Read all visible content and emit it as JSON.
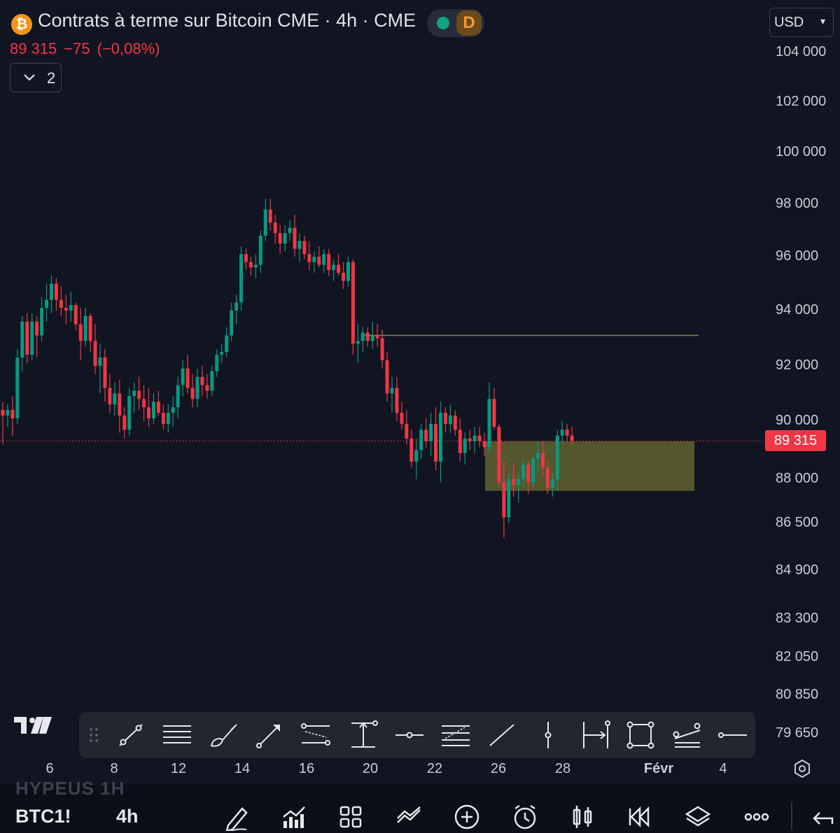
{
  "header": {
    "symbol_icon": "bitcoin-icon",
    "title": "Contrats à terme sur Bitcoin CME · 4h · CME",
    "delay_badge": "D",
    "last_price": "89 315",
    "change": "−75",
    "change_pct": "(−0,08%)",
    "indicator_count": "2",
    "currency": "USD"
  },
  "y_axis": {
    "labels": [
      "104 000",
      "102 000",
      "100 000",
      "98 000",
      "96 000",
      "94 000",
      "92 000",
      "90 000",
      "88 000",
      "86 500",
      "84 900",
      "83 300",
      "82 050",
      "80 850",
      "79 650"
    ],
    "current_price_tag": "89 315"
  },
  "x_axis": {
    "labels": [
      "6",
      "8",
      "12",
      "14",
      "16",
      "20",
      "22",
      "26",
      "28",
      "Févr",
      "4"
    ]
  },
  "drawing_toolbar": {
    "tools": [
      "drag-handle-icon",
      "trend-line-icon",
      "horizontal-lines-icon",
      "brush-icon",
      "arrow-icon",
      "parallel-channel-icon",
      "vertical-measure-icon",
      "horizontal-ray-icon",
      "fib-retracement-icon",
      "line-icon",
      "vertical-line-icon",
      "date-range-icon",
      "rectangle-icon",
      "pitchfork-icon",
      "horizontal-line-icon"
    ]
  },
  "bottom_bar": {
    "ghost_text": "HYPEUS 1H",
    "symbol": "BTC1!",
    "interval": "4h",
    "icons": [
      "pencil-icon",
      "indicators-icon",
      "layout-grid-icon",
      "compare-icon",
      "add-icon",
      "alert-icon",
      "chart-type-icon",
      "replay-icon",
      "layers-icon",
      "more-icon",
      "back-icon"
    ]
  },
  "colors": {
    "background": "#111522",
    "up": "#089981",
    "down": "#f23645",
    "zone": "#7a7a36",
    "level_line": "#8a8a52"
  },
  "chart_data": {
    "type": "candlestick",
    "interval": "4h",
    "last_price": 89315,
    "series": [
      {
        "ohlc": [
          [
            90400,
            90700,
            89200,
            90200
          ],
          [
            90200,
            90600,
            89800,
            90400
          ],
          [
            90400,
            90900,
            89500,
            90100
          ],
          [
            90100,
            92600,
            89900,
            92300
          ],
          [
            92300,
            93800,
            91800,
            93600
          ],
          [
            93600,
            93900,
            92100,
            92400
          ],
          [
            92400,
            93900,
            92200,
            93600
          ],
          [
            93600,
            93800,
            92300,
            93100
          ],
          [
            93100,
            94500,
            92900,
            94100
          ],
          [
            94100,
            95000,
            93600,
            94400
          ],
          [
            94400,
            95300,
            93900,
            95000
          ],
          [
            95000,
            95200,
            94000,
            94400
          ],
          [
            94400,
            94900,
            93800,
            94100
          ],
          [
            94100,
            94600,
            93500,
            94000
          ],
          [
            94000,
            94700,
            93600,
            94200
          ],
          [
            94200,
            94300,
            93300,
            93500
          ],
          [
            93500,
            94100,
            92200,
            92900
          ],
          [
            92900,
            94100,
            92700,
            93800
          ],
          [
            93800,
            93900,
            92500,
            92900
          ],
          [
            92900,
            93500,
            91700,
            92000
          ],
          [
            92000,
            92800,
            91000,
            92300
          ],
          [
            92300,
            92600,
            90700,
            91200
          ],
          [
            91200,
            91700,
            90300,
            90600
          ],
          [
            90600,
            91400,
            90200,
            91000
          ],
          [
            91000,
            91500,
            89600,
            90200
          ],
          [
            90200,
            90500,
            89400,
            89700
          ],
          [
            89700,
            91200,
            89500,
            90900
          ],
          [
            90900,
            91400,
            90300,
            91100
          ],
          [
            91100,
            91600,
            90400,
            90800
          ],
          [
            90800,
            91300,
            90000,
            90500
          ],
          [
            90500,
            91200,
            89800,
            90100
          ],
          [
            90100,
            91000,
            89900,
            90700
          ],
          [
            90700,
            91100,
            90200,
            90300
          ],
          [
            90300,
            90600,
            89700,
            89900
          ],
          [
            89900,
            90600,
            89600,
            90300
          ],
          [
            90300,
            90900,
            89800,
            90500
          ],
          [
            90500,
            91600,
            90100,
            91300
          ],
          [
            91300,
            92200,
            90900,
            91900
          ],
          [
            91900,
            92400,
            91000,
            91200
          ],
          [
            91200,
            91700,
            90500,
            90800
          ],
          [
            90800,
            91900,
            90500,
            91600
          ],
          [
            91600,
            92000,
            90900,
            91300
          ],
          [
            91300,
            91700,
            90800,
            91100
          ],
          [
            91100,
            92000,
            90900,
            91800
          ],
          [
            91800,
            92600,
            91600,
            92400
          ],
          [
            92400,
            92800,
            92100,
            92500
          ],
          [
            92500,
            93400,
            92300,
            93100
          ],
          [
            93100,
            94300,
            92900,
            94000
          ],
          [
            94000,
            94600,
            93500,
            94300
          ],
          [
            94300,
            96400,
            94000,
            96100
          ],
          [
            96100,
            96300,
            95500,
            95800
          ],
          [
            95800,
            96000,
            95300,
            95600
          ],
          [
            95600,
            96100,
            95200,
            95700
          ],
          [
            95700,
            97000,
            95400,
            96800
          ],
          [
            96800,
            98200,
            96600,
            97800
          ],
          [
            97800,
            98200,
            97000,
            97300
          ],
          [
            97300,
            97600,
            96500,
            96900
          ],
          [
            96900,
            97200,
            96100,
            96500
          ],
          [
            96500,
            97200,
            96200,
            96900
          ],
          [
            96900,
            97400,
            96600,
            97100
          ],
          [
            97100,
            97600,
            96000,
            96300
          ],
          [
            96300,
            96900,
            95800,
            96600
          ],
          [
            96600,
            96800,
            95900,
            96100
          ],
          [
            96100,
            96600,
            95500,
            95800
          ],
          [
            95800,
            96200,
            95400,
            96000
          ],
          [
            96000,
            96400,
            95600,
            95700
          ],
          [
            95700,
            96300,
            95400,
            96100
          ],
          [
            96100,
            96300,
            95300,
            95500
          ],
          [
            95500,
            95900,
            95100,
            95700
          ],
          [
            95700,
            96100,
            95300,
            95400
          ],
          [
            95400,
            95800,
            94800,
            95100
          ],
          [
            95100,
            96000,
            94900,
            95800
          ],
          [
            95800,
            95900,
            92400,
            92800
          ],
          [
            92800,
            93500,
            92100,
            92900
          ],
          [
            92900,
            93400,
            92500,
            93200
          ],
          [
            93200,
            93400,
            92700,
            92900
          ],
          [
            92900,
            93600,
            92600,
            93100
          ],
          [
            93100,
            93500,
            92700,
            93000
          ],
          [
            93000,
            93300,
            91900,
            92200
          ],
          [
            92200,
            92500,
            90700,
            91000
          ],
          [
            91000,
            91600,
            90300,
            91200
          ],
          [
            91200,
            91600,
            90000,
            90300
          ],
          [
            90300,
            90700,
            89700,
            89900
          ],
          [
            89900,
            90400,
            89200,
            89400
          ],
          [
            89400,
            89700,
            88400,
            88600
          ],
          [
            88600,
            89400,
            88000,
            89000
          ],
          [
            89000,
            89900,
            88700,
            89700
          ],
          [
            89700,
            90100,
            89100,
            89300
          ],
          [
            89300,
            90300,
            88800,
            89900
          ],
          [
            89900,
            90500,
            88300,
            88600
          ],
          [
            88600,
            90700,
            87900,
            90300
          ],
          [
            90300,
            90500,
            89600,
            89900
          ],
          [
            89900,
            90600,
            89600,
            90200
          ],
          [
            90200,
            90400,
            89500,
            89700
          ],
          [
            89700,
            90100,
            88600,
            88900
          ],
          [
            88900,
            89600,
            88500,
            89400
          ],
          [
            89400,
            89700,
            89000,
            89300
          ],
          [
            89300,
            89800,
            88900,
            89500
          ],
          [
            89500,
            89800,
            89100,
            89300
          ],
          [
            89300,
            89600,
            88800,
            89100
          ],
          [
            89100,
            91400,
            88900,
            90800
          ],
          [
            90800,
            91200,
            89700,
            89800
          ],
          [
            89800,
            89900,
            87700,
            87900
          ],
          [
            87900,
            88600,
            86000,
            86700
          ],
          [
            86700,
            88200,
            86500,
            88000
          ],
          [
            88000,
            88500,
            87400,
            87800
          ],
          [
            87800,
            88200,
            87200,
            88000
          ],
          [
            88000,
            88700,
            87700,
            88500
          ],
          [
            88500,
            88600,
            87500,
            87900
          ],
          [
            87900,
            88800,
            87700,
            88700
          ],
          [
            88700,
            89300,
            88200,
            88900
          ],
          [
            88900,
            89300,
            88100,
            88400
          ],
          [
            88400,
            88600,
            87500,
            87700
          ],
          [
            87700,
            88200,
            87400,
            88000
          ],
          [
            88000,
            89700,
            87600,
            89500
          ],
          [
            89500,
            90000,
            89200,
            89700
          ],
          [
            89700,
            89900,
            89300,
            89500
          ],
          [
            89500,
            89800,
            89200,
            89315
          ]
        ]
      }
    ],
    "annotations": {
      "horizontal_level": 93100,
      "zone": {
        "low": 87600,
        "high": 89300
      }
    },
    "y_labels": [
      "104 000",
      "102 000",
      "100 000",
      "98 000",
      "96 000",
      "94 000",
      "92 000",
      "90 000",
      "88 000",
      "86 500",
      "84 900",
      "83 300",
      "82 050",
      "80 850",
      "79 650"
    ],
    "x_labels": [
      "6",
      "8",
      "12",
      "14",
      "16",
      "20",
      "22",
      "26",
      "28",
      "Févr",
      "4"
    ],
    "grid": false
  }
}
